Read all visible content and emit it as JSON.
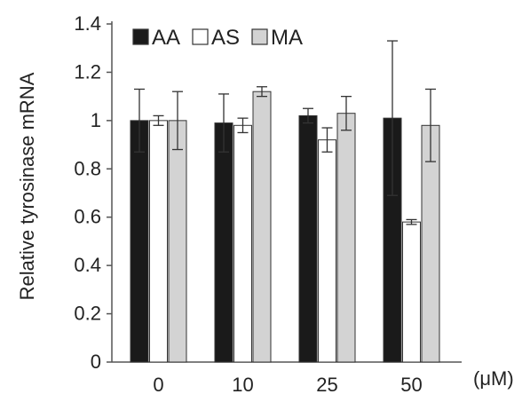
{
  "chart_data": {
    "type": "bar",
    "title": "",
    "xlabel": "",
    "ylabel": "Relative tyrosinase mRNA",
    "x_unit": "(μM)",
    "categories": [
      "0",
      "10",
      "25",
      "50"
    ],
    "ylim": [
      0,
      1.4
    ],
    "yticks": [
      0,
      0.2,
      0.4,
      0.6,
      0.8,
      1,
      1.2,
      1.4
    ],
    "ytick_labels": [
      "0",
      "0.2",
      "0.4",
      "0.6",
      "0.8",
      "1",
      "1.2",
      "1.4"
    ],
    "grid": false,
    "legend_position": "top-left",
    "series": [
      {
        "name": "AA",
        "color": "#1a1a1a",
        "values": [
          1.0,
          0.99,
          1.02,
          1.01
        ],
        "errors": [
          0.13,
          0.12,
          0.03,
          0.32
        ]
      },
      {
        "name": "AS",
        "color": "#ffffff",
        "values": [
          1.0,
          0.98,
          0.92,
          0.58
        ],
        "errors": [
          0.02,
          0.03,
          0.05,
          0.01
        ]
      },
      {
        "name": "MA",
        "color": "#d3d3d3",
        "values": [
          1.0,
          1.12,
          1.03,
          0.98
        ],
        "errors": [
          0.12,
          0.02,
          0.07,
          0.15
        ]
      }
    ]
  }
}
